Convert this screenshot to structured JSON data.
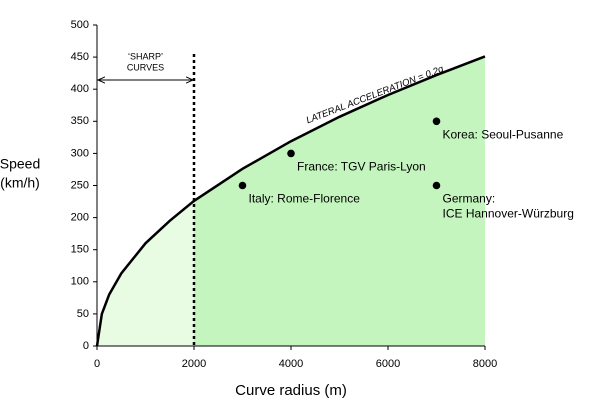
{
  "chart_data": {
    "type": "line",
    "x_label": "Curve radius (m)",
    "y_label_lines": [
      "Speed",
      "(km/h)"
    ],
    "xlim": [
      0,
      8000
    ],
    "ylim": [
      0,
      500
    ],
    "xticks": [
      0,
      2000,
      4000,
      6000,
      8000
    ],
    "yticks": [
      0,
      50,
      100,
      150,
      200,
      250,
      300,
      350,
      400,
      450,
      500
    ],
    "series": [
      {
        "name": "LATERAL ACCELERATION  =  0.2g",
        "color": "#000000",
        "x": [
          0,
          100,
          250,
          500,
          1000,
          1500,
          2000,
          3000,
          4000,
          5000,
          6000,
          7000,
          8000
        ],
        "y": [
          0,
          50,
          80,
          113,
          160,
          195,
          226,
          276,
          319,
          357,
          391,
          422,
          451
        ]
      }
    ],
    "sharp_region": {
      "x": 2000,
      "label_lines": [
        "‘SHARP’",
        "CURVES"
      ],
      "color": "#e8fce3"
    },
    "safe_region_color": "#c5f5bf",
    "points": [
      {
        "label_lines": [
          "Italy: Rome-Florence"
        ],
        "x": 3000,
        "y": 250
      },
      {
        "label_lines": [
          "France: TGV Paris-Lyon"
        ],
        "x": 4000,
        "y": 300
      },
      {
        "label_lines": [
          "Korea: Seoul-Pusanne"
        ],
        "x": 7000,
        "y": 350
      },
      {
        "label_lines": [
          "Germany:",
          "ICE Hannover-Würzburg"
        ],
        "x": 7000,
        "y": 250
      }
    ]
  }
}
